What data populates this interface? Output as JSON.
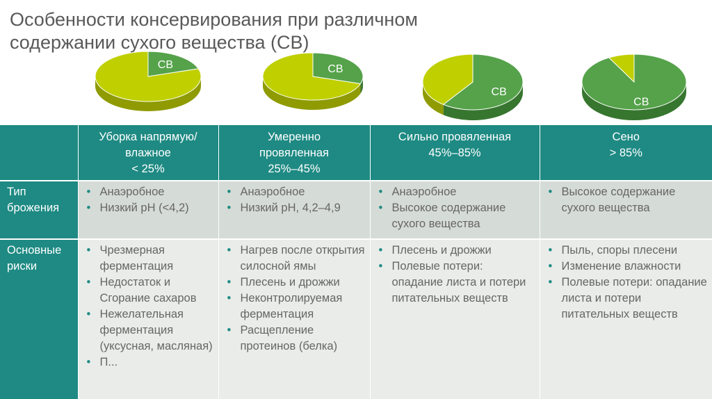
{
  "title": "Особенности консервирования при различном содержании сухого вещества (СВ)",
  "colors": {
    "header_teal": "#1e8a83",
    "lime": "#bfcf00",
    "green": "#55a24a",
    "bullet": "#1e8a83"
  },
  "pies": [
    {
      "label": "СВ",
      "cv_fraction": 0.2
    },
    {
      "label": "СВ",
      "cv_fraction": 0.3
    },
    {
      "label": "СВ",
      "cv_fraction": 0.6
    },
    {
      "label": "СВ",
      "cv_fraction": 0.92
    }
  ],
  "table": {
    "columns": [
      {
        "line1": "Уборка напрямую/",
        "line2": "влажное",
        "line3": "< 25%"
      },
      {
        "line1": "Умеренно",
        "line2": "провяленная",
        "line3": "25%–45%"
      },
      {
        "line1": "Сильно провяленная",
        "line2": "45%–85%",
        "line3": ""
      },
      {
        "line1": "Сено",
        "line2": "> 85%",
        "line3": ""
      }
    ],
    "rows": [
      {
        "head": "Тип брожения",
        "cells": [
          [
            "Анаэробное",
            "Низкий pH (<4,2)"
          ],
          [
            "Анаэробное",
            "Низкий pH, 4,2–4,9"
          ],
          [
            "Анаэробное",
            "Высокое содержание сухого вещества"
          ],
          [
            "Высокое содержание сухого вещества"
          ]
        ]
      },
      {
        "head": "Основные риски",
        "cells": [
          [
            "Чрезмерная ферментация",
            "Недостаток и Сгорание сахаров",
            "Нежелательная ферментация (уксусная, масляная)",
            "П..."
          ],
          [
            "Нагрев после открытия силосной ямы",
            "Плесень и дрожжи",
            "Неконтролируемая ферментация",
            "Расщепление протеинов (белка)"
          ],
          [
            "Плесень и дрожжи",
            "Полевые потери: опадание листа и потери питательных веществ"
          ],
          [
            "Пыль, споры плесени",
            "Изменение влажности",
            "Полевые потери: опадание листа и потери питательных веществ"
          ]
        ]
      }
    ]
  }
}
